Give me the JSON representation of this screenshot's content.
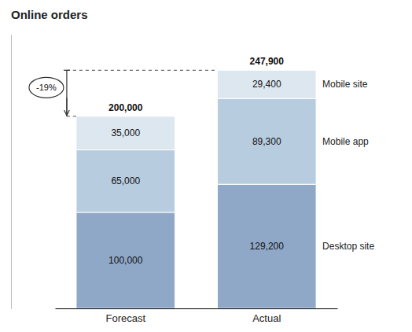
{
  "chart_data": {
    "type": "bar",
    "stacked": true,
    "title": "Online orders",
    "categories": [
      "Forecast",
      "Actual"
    ],
    "series": [
      {
        "name": "Desktop site",
        "color": "#8fa8c8",
        "values": [
          100000,
          129200
        ],
        "value_labels": [
          "100,000",
          "129,200"
        ]
      },
      {
        "name": "Mobile app",
        "color": "#b8ccdf",
        "values": [
          65000,
          89300
        ],
        "value_labels": [
          "65,000",
          "89,300"
        ]
      },
      {
        "name": "Mobile site",
        "color": "#dce7f0",
        "values": [
          35000,
          29400
        ],
        "value_labels": [
          "35,000",
          "29,400"
        ]
      }
    ],
    "totals": [
      200000,
      247900
    ],
    "total_labels": [
      "200,000",
      "247,900"
    ],
    "annotations": [
      "-19%"
    ],
    "ylim": [
      0,
      285000
    ],
    "data_labels": true,
    "tick_labels": "x"
  }
}
